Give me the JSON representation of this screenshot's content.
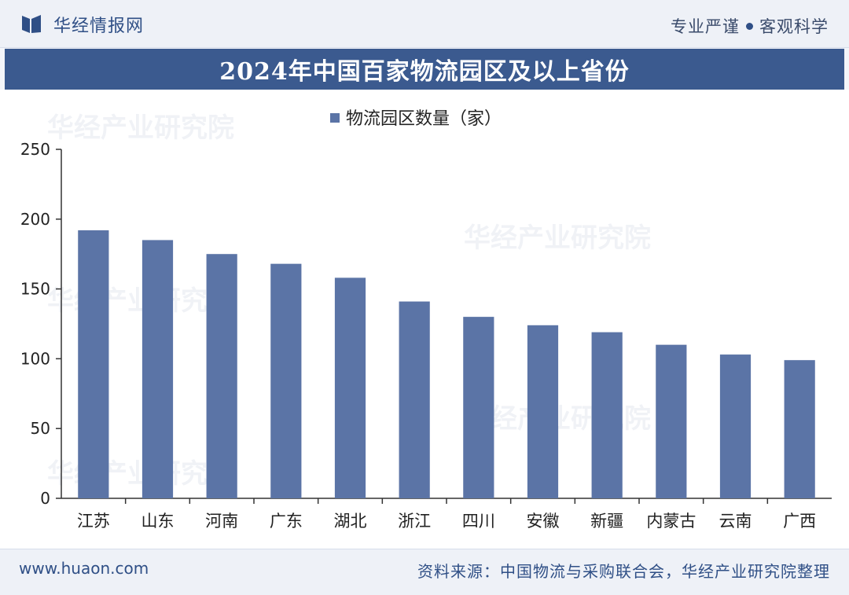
{
  "header": {
    "brand_name": "华经情报网",
    "slogan_left": "专业严谨",
    "slogan_right": "客观科学"
  },
  "colors": {
    "bar": "#5b74a6",
    "title_band": "#3b5a8f"
  },
  "chart_data": {
    "type": "bar",
    "title": "2024年中国百家物流园区及以上省份",
    "legend": "物流园区数量（家）",
    "legend_position": "top-center",
    "categories": [
      "江苏",
      "山东",
      "河南",
      "广东",
      "湖北",
      "浙江",
      "四川",
      "安徽",
      "新疆",
      "内蒙古",
      "云南",
      "广西"
    ],
    "values": [
      192,
      185,
      175,
      168,
      158,
      141,
      130,
      124,
      119,
      110,
      103,
      99
    ],
    "ylim": [
      0,
      250
    ],
    "yticks": [
      "0",
      "50",
      "100",
      "150",
      "200",
      "250"
    ],
    "grid": false
  },
  "watermark": "华经产业研究院",
  "footer": {
    "site": "www.huaon.com",
    "source": "资料来源：中国物流与采购联合会，华经产业研究院整理"
  }
}
